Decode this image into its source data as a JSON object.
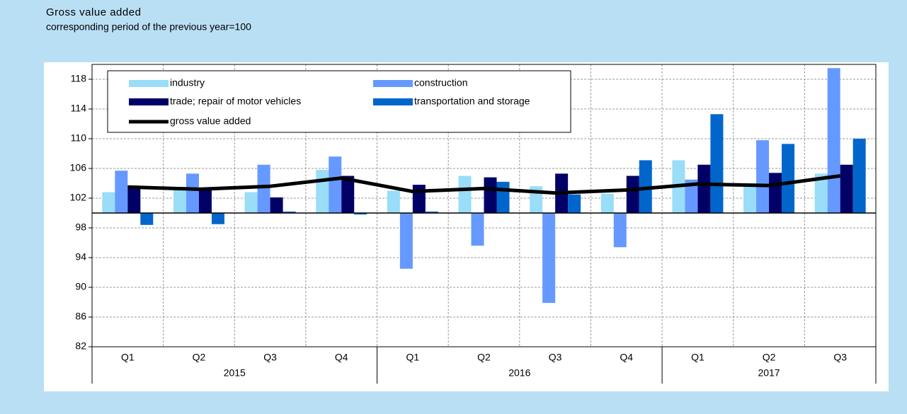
{
  "chart_data": {
    "type": "bar",
    "title": "Gross value added",
    "subtitle": "corresponding period of the previous year=100",
    "groups": [
      {
        "label": "2015",
        "quarters": [
          "Q1",
          "Q2",
          "Q3",
          "Q4"
        ]
      },
      {
        "label": "2016",
        "quarters": [
          "Q1",
          "Q2",
          "Q3",
          "Q4"
        ]
      },
      {
        "label": "2017",
        "quarters": [
          "Q1",
          "Q2",
          "Q3"
        ]
      }
    ],
    "series": [
      {
        "name": "industry",
        "color": "#99ddf8",
        "values": [
          102.8,
          103.3,
          102.8,
          105.8,
          103.0,
          105.0,
          103.6,
          102.6,
          107.1,
          103.7,
          105.3
        ]
      },
      {
        "name": "construction",
        "color": "#6699ff",
        "values": [
          105.7,
          105.3,
          106.5,
          107.6,
          92.5,
          95.6,
          87.9,
          95.4,
          104.5,
          109.8,
          119.5
        ]
      },
      {
        "name": "trade; repair of motor vehicles",
        "color": "#000066",
        "values": [
          103.3,
          103.2,
          102.1,
          105.0,
          103.8,
          104.8,
          105.3,
          105.0,
          106.5,
          105.4,
          106.5
        ]
      },
      {
        "name": "transportation and storage",
        "color": "#0066cc",
        "values": [
          98.4,
          98.5,
          100.2,
          99.8,
          100.2,
          104.2,
          102.5,
          107.1,
          113.3,
          109.3,
          110.0
        ]
      },
      {
        "name": "gross value added",
        "type": "line",
        "color": "#000000",
        "values": [
          103.5,
          103.2,
          103.6,
          104.7,
          102.9,
          103.3,
          102.7,
          103.1,
          103.9,
          103.7,
          105.0
        ]
      }
    ],
    "ylim": [
      82,
      120
    ],
    "yticks": [
      82,
      86,
      90,
      94,
      98,
      102,
      106,
      110,
      114,
      118
    ],
    "baseline": 100,
    "grid": true
  }
}
